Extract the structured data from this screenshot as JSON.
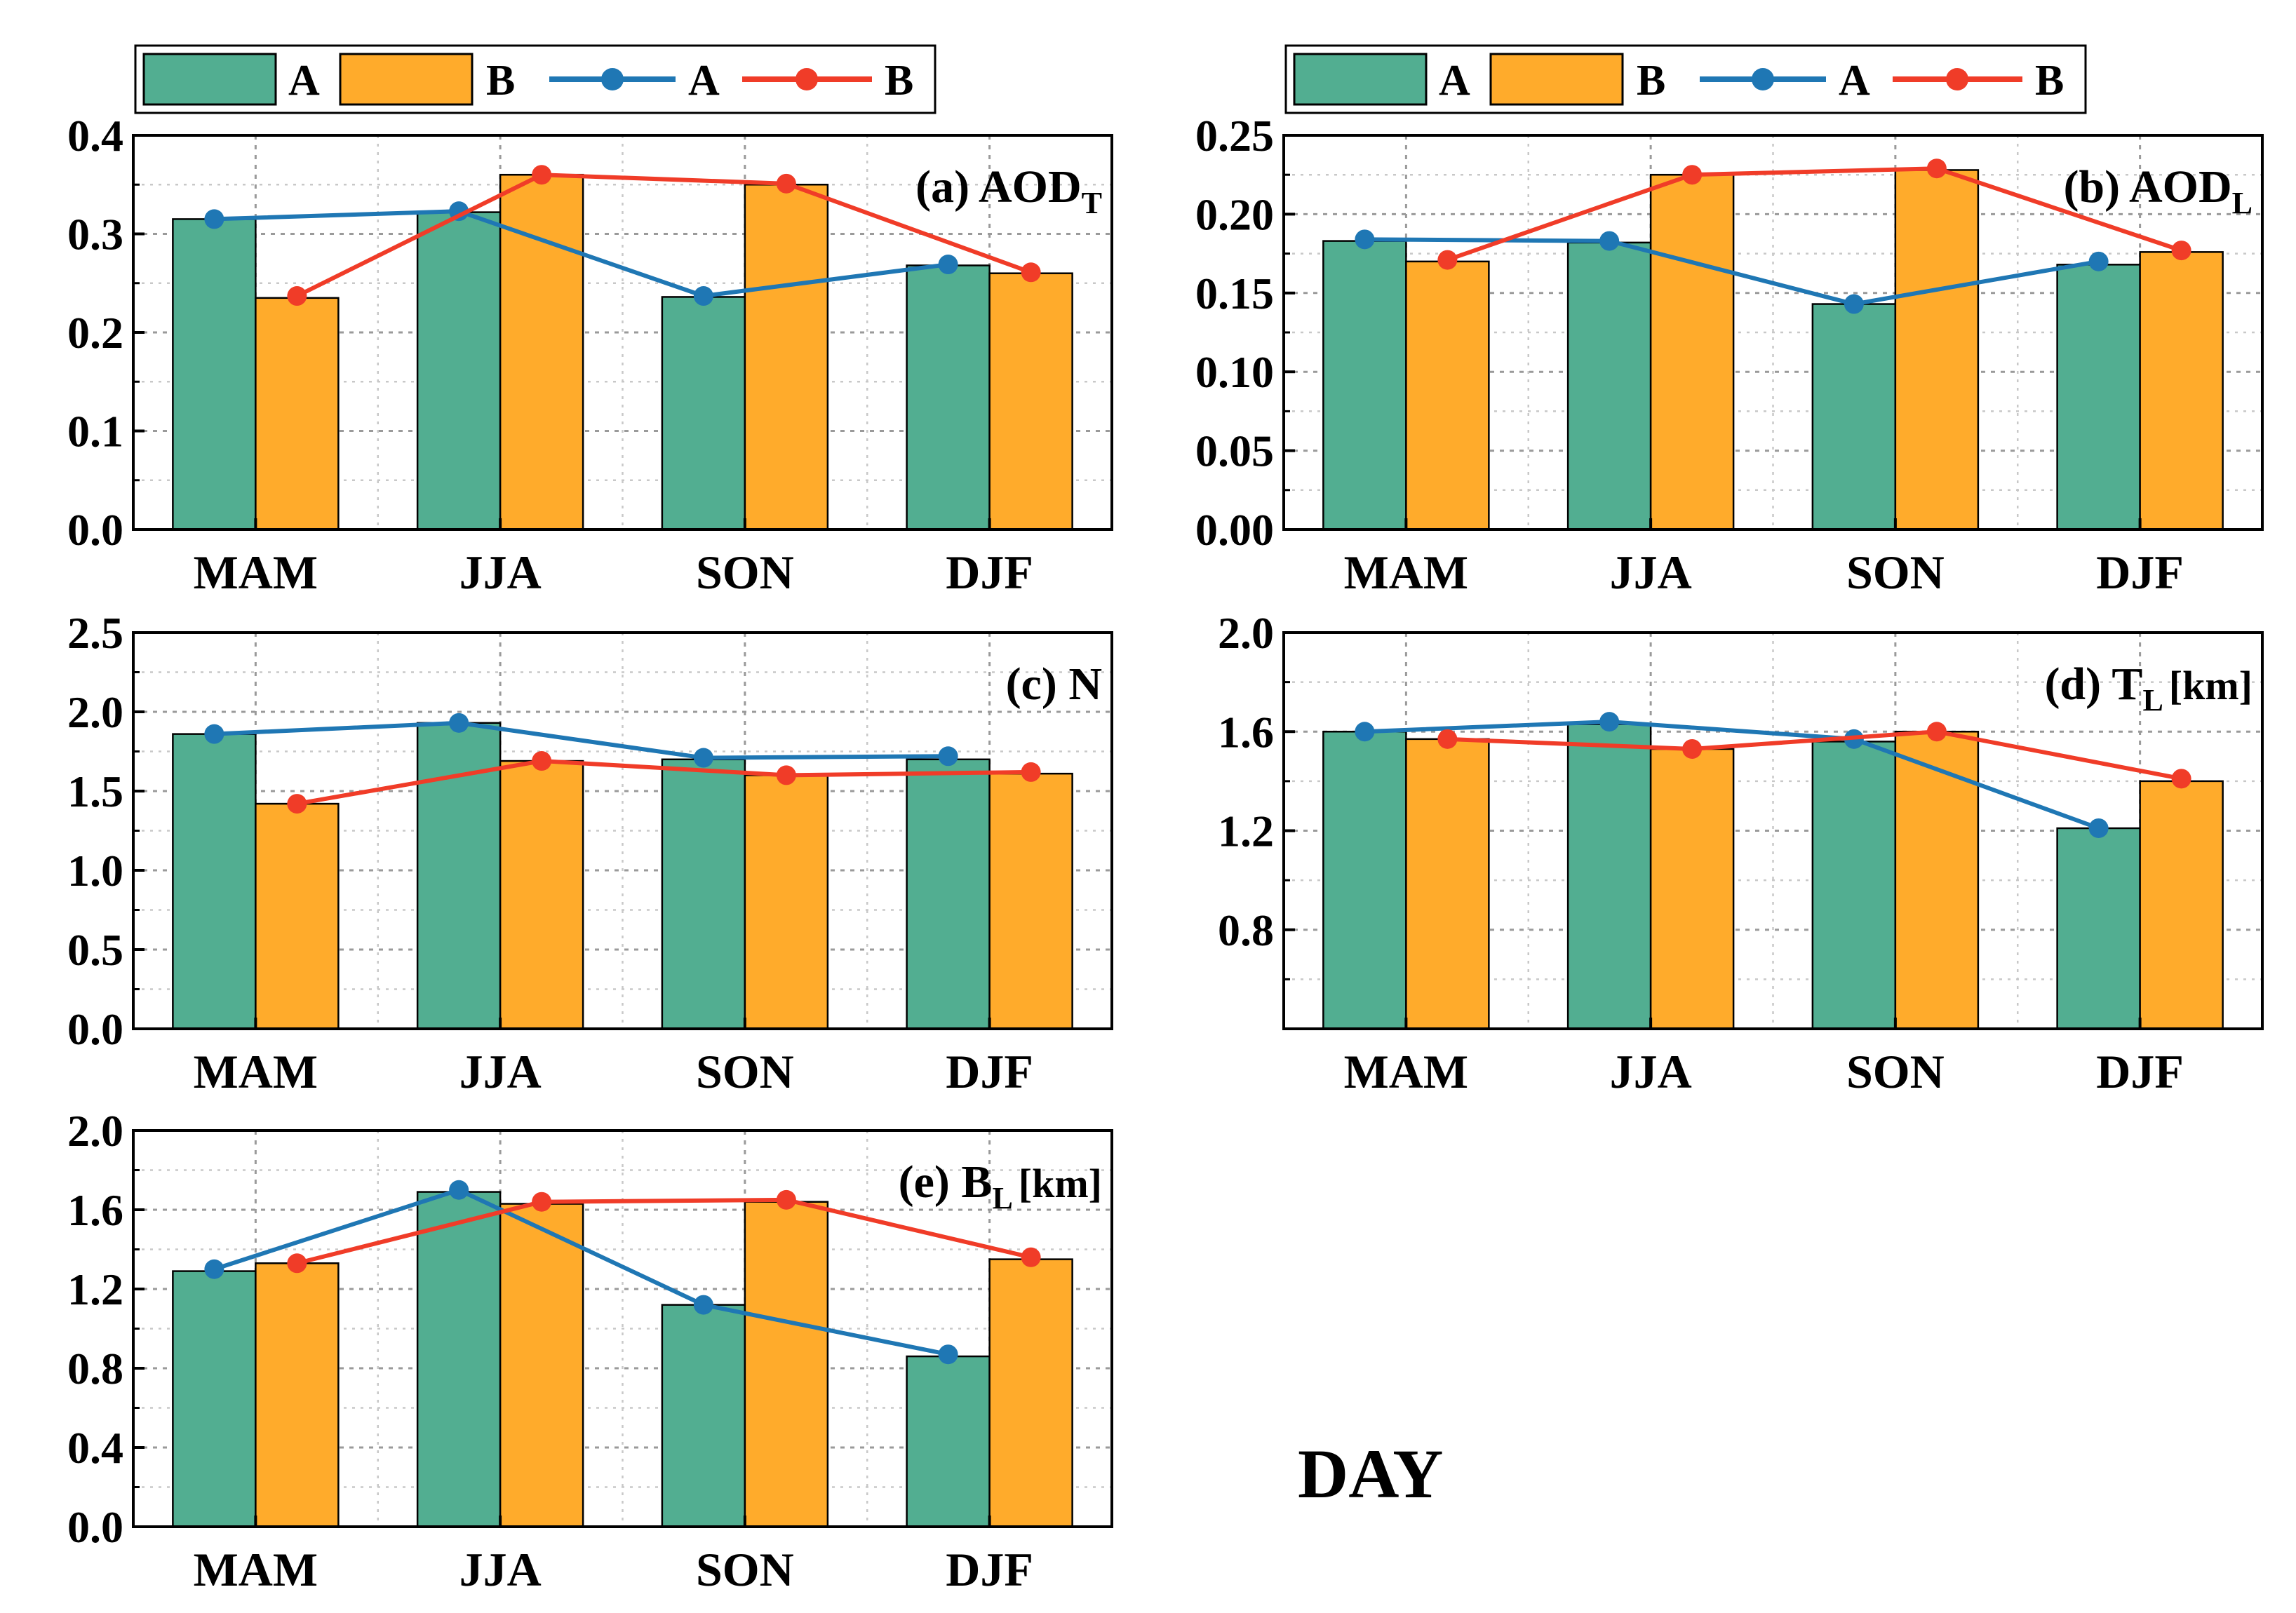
{
  "figure_label": "DAY",
  "colors": {
    "bar_a": "#52AE91",
    "bar_b": "#FFAB2B",
    "line_a": "#1F77B4",
    "line_b": "#F03C28"
  },
  "legends": [
    {
      "bar_a": "A",
      "bar_b": "B",
      "line_a": "A",
      "line_b": "B"
    },
    {
      "bar_a": "A",
      "bar_b": "B",
      "line_a": "A",
      "line_b": "B"
    }
  ],
  "chart_data": [
    {
      "type": "bar",
      "id": "a",
      "label_main": "(a) AOD",
      "label_sub": "T",
      "label_after": "",
      "categories": [
        "MAM",
        "JJA",
        "SON",
        "DJF"
      ],
      "ylim": [
        0,
        0.4
      ],
      "yticks": [
        "0.0",
        "0.1",
        "0.2",
        "0.3",
        "0.4"
      ],
      "series": [
        {
          "name": "A",
          "kind": "bar",
          "values": [
            0.315,
            0.322,
            0.236,
            0.268
          ]
        },
        {
          "name": "B",
          "kind": "bar",
          "values": [
            0.235,
            0.36,
            0.35,
            0.26
          ]
        },
        {
          "name": "A",
          "kind": "line",
          "values": [
            0.315,
            0.323,
            0.237,
            0.269
          ]
        },
        {
          "name": "B",
          "kind": "line",
          "values": [
            0.237,
            0.36,
            0.351,
            0.261
          ]
        }
      ]
    },
    {
      "type": "bar",
      "id": "b",
      "label_main": "(b) AOD",
      "label_sub": "L",
      "label_after": "",
      "categories": [
        "MAM",
        "JJA",
        "SON",
        "DJF"
      ],
      "ylim": [
        0,
        0.25
      ],
      "yticks": [
        "0.00",
        "0.05",
        "0.10",
        "0.15",
        "0.20",
        "0.25"
      ],
      "series": [
        {
          "name": "A",
          "kind": "bar",
          "values": [
            0.183,
            0.182,
            0.143,
            0.168
          ]
        },
        {
          "name": "B",
          "kind": "bar",
          "values": [
            0.17,
            0.225,
            0.228,
            0.176
          ]
        },
        {
          "name": "A",
          "kind": "line",
          "values": [
            0.184,
            0.183,
            0.143,
            0.17
          ]
        },
        {
          "name": "B",
          "kind": "line",
          "values": [
            0.171,
            0.225,
            0.229,
            0.177
          ]
        }
      ]
    },
    {
      "type": "bar",
      "id": "c",
      "label_main": "(c) N",
      "label_sub": "",
      "label_after": "",
      "categories": [
        "MAM",
        "JJA",
        "SON",
        "DJF"
      ],
      "ylim": [
        0,
        2.5
      ],
      "yticks": [
        "0.0",
        "0.5",
        "1.0",
        "1.5",
        "2.0",
        "2.5"
      ],
      "series": [
        {
          "name": "A",
          "kind": "bar",
          "values": [
            1.86,
            1.93,
            1.7,
            1.7
          ]
        },
        {
          "name": "B",
          "kind": "bar",
          "values": [
            1.42,
            1.69,
            1.6,
            1.61
          ]
        },
        {
          "name": "A",
          "kind": "line",
          "values": [
            1.86,
            1.93,
            1.71,
            1.72
          ]
        },
        {
          "name": "B",
          "kind": "line",
          "values": [
            1.42,
            1.69,
            1.6,
            1.62
          ]
        }
      ]
    },
    {
      "type": "bar",
      "id": "d",
      "label_main": "(d) T",
      "label_sub": "L",
      "label_after": "[km]",
      "categories": [
        "MAM",
        "JJA",
        "SON",
        "DJF"
      ],
      "ylim": [
        0.4,
        2.0
      ],
      "yticks": [
        "0.8",
        "1.2",
        "1.6",
        "2.0"
      ],
      "ytick_values": [
        0.8,
        1.2,
        1.6,
        2.0
      ],
      "series": [
        {
          "name": "A",
          "kind": "bar",
          "values": [
            1.6,
            1.63,
            1.56,
            1.21
          ]
        },
        {
          "name": "B",
          "kind": "bar",
          "values": [
            1.57,
            1.53,
            1.6,
            1.4
          ]
        },
        {
          "name": "A",
          "kind": "line",
          "values": [
            1.6,
            1.64,
            1.57,
            1.21
          ]
        },
        {
          "name": "B",
          "kind": "line",
          "values": [
            1.57,
            1.53,
            1.6,
            1.41
          ]
        }
      ]
    },
    {
      "type": "bar",
      "id": "e",
      "label_main": "(e) B",
      "label_sub": "L",
      "label_after": "[km]",
      "categories": [
        "MAM",
        "JJA",
        "SON",
        "DJF"
      ],
      "ylim": [
        0,
        2.0
      ],
      "yticks": [
        "0.0",
        "0.4",
        "0.8",
        "1.2",
        "1.6",
        "2.0"
      ],
      "series": [
        {
          "name": "A",
          "kind": "bar",
          "values": [
            1.29,
            1.69,
            1.12,
            0.86
          ]
        },
        {
          "name": "B",
          "kind": "bar",
          "values": [
            1.33,
            1.63,
            1.64,
            1.35
          ]
        },
        {
          "name": "A",
          "kind": "line",
          "values": [
            1.3,
            1.7,
            1.12,
            0.87
          ]
        },
        {
          "name": "B",
          "kind": "line",
          "values": [
            1.33,
            1.64,
            1.65,
            1.36
          ]
        }
      ]
    }
  ]
}
